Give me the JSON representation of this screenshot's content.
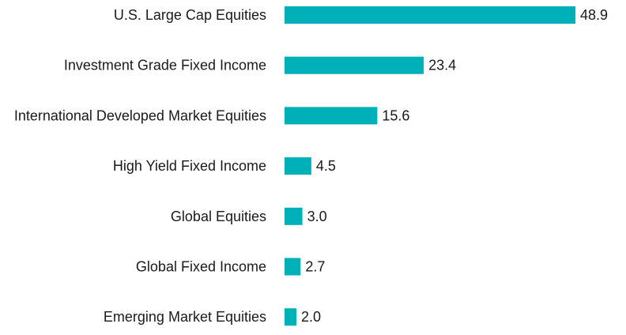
{
  "chart_data": {
    "type": "bar",
    "orientation": "horizontal",
    "title": "",
    "xlabel": "",
    "ylabel": "",
    "categories": [
      "U.S. Large Cap Equities",
      "Investment Grade Fixed Income",
      "International Developed Market Equities",
      "High Yield Fixed Income",
      "Global Equities",
      "Global Fixed Income",
      "Emerging Market Equities"
    ],
    "values": [
      48.9,
      23.4,
      15.6,
      4.5,
      3.0,
      2.7,
      2.0
    ],
    "value_labels": [
      "48.9",
      "23.4",
      "15.6",
      "4.5",
      "3.0",
      "2.7",
      "2.0"
    ],
    "xlim": [
      0,
      48.9
    ],
    "grid": false,
    "legend": "none",
    "bar_color": "#00B0B9"
  }
}
